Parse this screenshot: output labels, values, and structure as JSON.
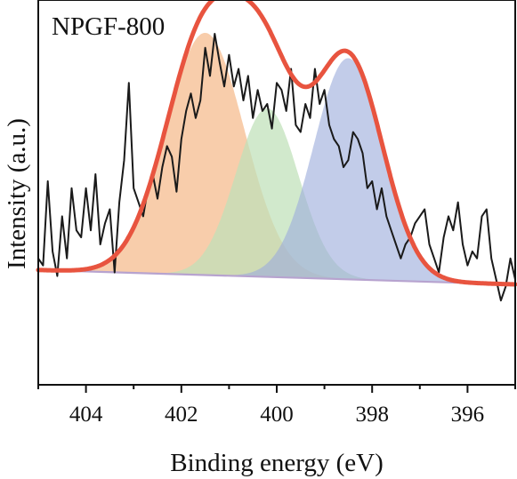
{
  "chart_data": {
    "type": "line",
    "title": "NPGF-800",
    "xlabel": "Binding energy (eV)",
    "ylabel": "Intensity (a.u.)",
    "xlim": [
      405.0,
      395.0
    ],
    "x_reversed": true,
    "ylim": [
      0,
      100
    ],
    "y_ticks_shown": false,
    "x_ticks": [
      404,
      402,
      400,
      398,
      396
    ],
    "x_tick_labels": [
      "404",
      "402",
      "400",
      "398",
      "396"
    ],
    "grid": false,
    "legend": "none",
    "baseline": {
      "x_start": 405.0,
      "y_start": 32.7,
      "x_end": 395.0,
      "y_end": 28.6
    },
    "components": [
      {
        "center": 401.5,
        "sigma": 0.82,
        "height": 69,
        "color": "#f7c298",
        "opacity": 0.82
      },
      {
        "center": 400.2,
        "sigma": 0.66,
        "height": 48,
        "color": "#bfe0b8",
        "opacity": 0.72
      },
      {
        "center": 398.5,
        "sigma": 0.72,
        "height": 63,
        "color": "#9dacdb",
        "opacity": 0.62
      }
    ],
    "fit_color": "#e8543f",
    "raw_color": "#1a1a1a",
    "raw_data": {
      "x": [
        405.0,
        404.9,
        404.8,
        404.7,
        404.6,
        404.5,
        404.4,
        404.3,
        404.2,
        404.1,
        404.0,
        403.9,
        403.8,
        403.7,
        403.6,
        403.5,
        403.4,
        403.3,
        403.2,
        403.1,
        403.0,
        402.9,
        402.8,
        402.7,
        402.6,
        402.5,
        402.4,
        402.3,
        402.2,
        402.1,
        402.0,
        401.9,
        401.8,
        401.7,
        401.6,
        401.5,
        401.4,
        401.3,
        401.2,
        401.1,
        401.0,
        400.9,
        400.8,
        400.7,
        400.6,
        400.5,
        400.4,
        400.3,
        400.2,
        400.1,
        400.0,
        399.9,
        399.8,
        399.7,
        399.6,
        399.5,
        399.4,
        399.3,
        399.2,
        399.1,
        399.0,
        398.9,
        398.8,
        398.7,
        398.6,
        398.5,
        398.4,
        398.3,
        398.2,
        398.1,
        398.0,
        397.9,
        397.8,
        397.7,
        397.6,
        397.5,
        397.4,
        397.3,
        397.2,
        397.1,
        397.0,
        396.9,
        396.8,
        396.7,
        396.6,
        396.5,
        396.4,
        396.3,
        396.2,
        396.1,
        396.0,
        395.9,
        395.8,
        395.7,
        395.6,
        395.5,
        395.4,
        395.3,
        395.2,
        395.1,
        395.0
      ],
      "y": [
        36,
        34,
        58,
        38,
        31,
        48,
        36,
        56,
        44,
        42,
        56,
        44,
        60,
        40,
        46,
        50,
        32,
        52,
        64,
        86,
        56,
        52,
        48,
        56,
        60,
        53,
        62,
        68,
        65,
        55,
        70,
        78,
        83,
        76,
        81,
        96,
        88,
        100,
        92,
        85,
        94,
        85,
        90,
        81,
        88,
        76,
        84,
        78,
        80,
        73,
        86,
        84,
        78,
        90,
        74,
        72,
        80,
        76,
        90,
        80,
        84,
        74,
        70,
        68,
        62,
        64,
        72,
        70,
        66,
        56,
        58,
        50,
        56,
        48,
        44,
        40,
        36,
        40,
        42,
        46,
        48,
        50,
        40,
        36,
        32,
        42,
        48,
        44,
        52,
        40,
        34,
        38,
        36,
        48,
        50,
        36,
        30,
        24,
        28,
        36,
        30
      ]
    }
  }
}
